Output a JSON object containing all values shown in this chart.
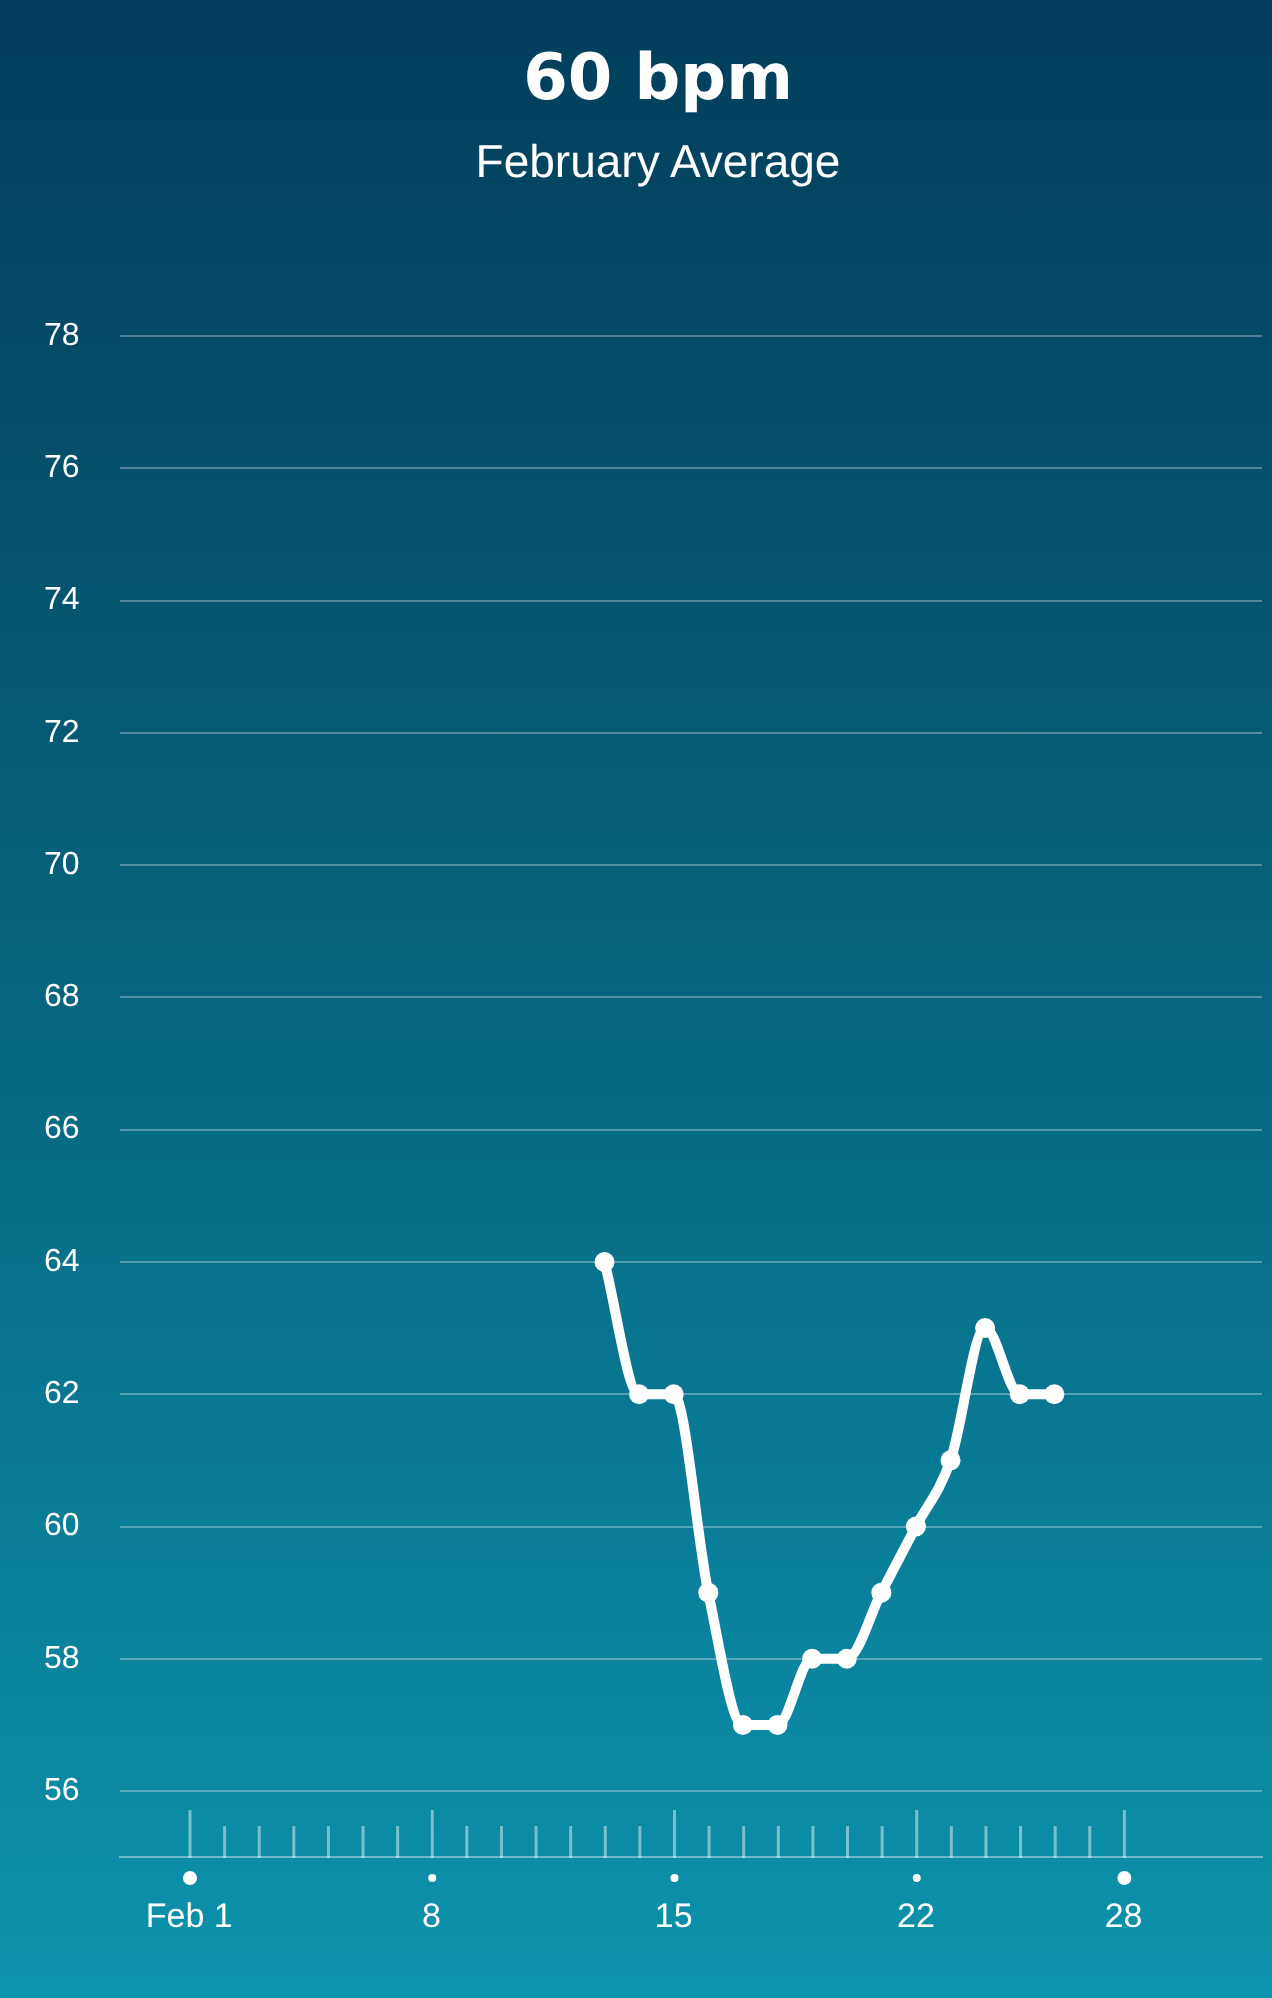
{
  "chart_data": {
    "type": "line",
    "title": "60 bpm",
    "subtitle": "February Average",
    "x": [
      "--02-13",
      "--02-14",
      "--02-15",
      "--02-16",
      "--02-17",
      "--02-18",
      "--02-19",
      "--02-20",
      "--02-21",
      "--02-22",
      "--02-23",
      "--02-24",
      "--02-25",
      "--02-26"
    ],
    "series": [
      {
        "color": "#ffffff",
        "values": [
          64,
          62,
          62,
          59,
          57,
          57,
          58,
          58,
          59,
          60,
          61,
          63,
          62,
          62
        ]
      }
    ],
    "xlim": [
      "--01-30",
      "--03-04"
    ],
    "xticks": [
      {
        "value": "--02-01",
        "label": "Feb 1"
      },
      {
        "value": "--02-02",
        "label": null
      },
      {
        "value": "--02-03",
        "label": null
      },
      {
        "value": "--02-04",
        "label": null
      },
      {
        "value": "--02-05",
        "label": null
      },
      {
        "value": "--02-06",
        "label": null
      },
      {
        "value": "--02-07",
        "label": null
      },
      {
        "value": "--02-08",
        "label": "8"
      },
      {
        "value": "--02-09",
        "label": null
      },
      {
        "value": "--02-10",
        "label": null
      },
      {
        "value": "--02-11",
        "label": null
      },
      {
        "value": "--02-12",
        "label": null
      },
      {
        "value": "--02-13",
        "label": null
      },
      {
        "value": "--02-14",
        "label": null
      },
      {
        "value": "--02-15",
        "label": "15"
      },
      {
        "value": "--02-16",
        "label": null
      },
      {
        "value": "--02-17",
        "label": null
      },
      {
        "value": "--02-18",
        "label": null
      },
      {
        "value": "--02-19",
        "label": null
      },
      {
        "value": "--02-20",
        "label": null
      },
      {
        "value": "--02-21",
        "label": null
      },
      {
        "value": "--02-22",
        "label": "22"
      },
      {
        "value": "--02-23",
        "label": null
      },
      {
        "value": "--02-24",
        "label": null
      },
      {
        "value": "--02-25",
        "label": null
      },
      {
        "value": "--02-26",
        "label": null
      },
      {
        "value": "--02-27",
        "label": null
      },
      {
        "value": "--02-28",
        "label": "28"
      }
    ],
    "ylim": [
      55,
      78
    ],
    "yticks": [
      56,
      58,
      60,
      62,
      64,
      66,
      68,
      70,
      72,
      74,
      76,
      78
    ],
    "grid": "y",
    "legend": false,
    "marker": "circle",
    "line_style": "solid"
  }
}
